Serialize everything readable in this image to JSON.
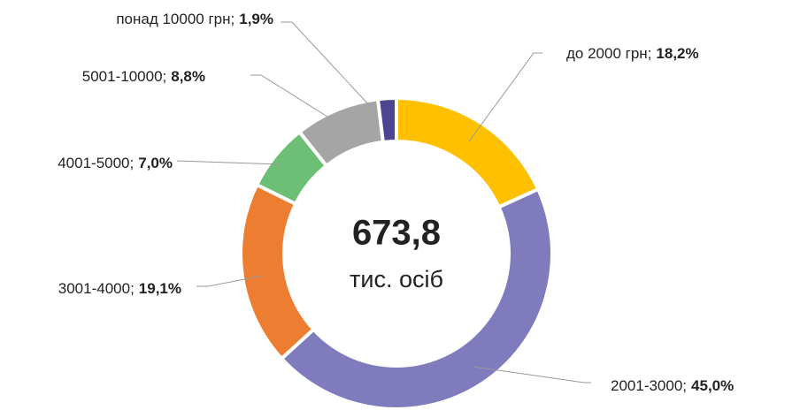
{
  "chart_data": {
    "type": "donut",
    "categories": [
      "до 2000 грн;",
      "2001-3000;",
      "3001-4000;",
      "4001-5000;",
      "5001-10000;",
      "понад 10000 грн;"
    ],
    "values": [
      18.2,
      45.0,
      19.1,
      7.0,
      8.8,
      1.9
    ],
    "value_labels": [
      "18,2%",
      "45,0%",
      "19,1%",
      "7,0%",
      "8,8%",
      "1,9%"
    ],
    "colors": [
      "#ffc000",
      "#7f7bbd",
      "#ed7d31",
      "#6dbf75",
      "#a5a5a5",
      "#4b4592"
    ],
    "center_text": [
      "673,8",
      "тис. осіб"
    ]
  }
}
